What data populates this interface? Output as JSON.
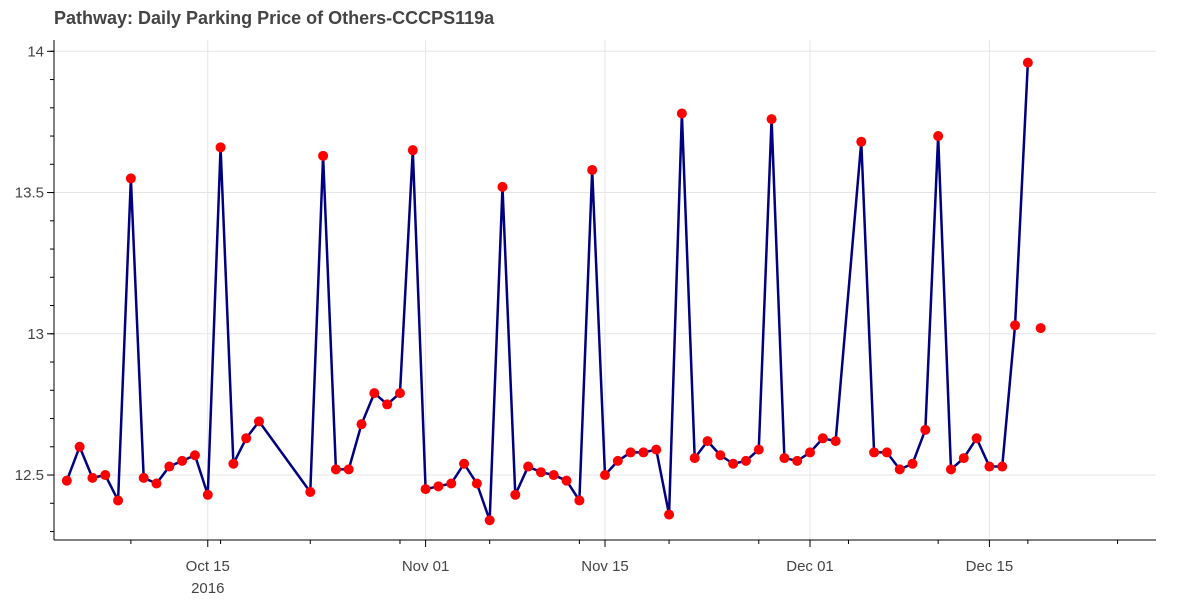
{
  "chart_data": {
    "type": "line",
    "title": "Pathway: Daily Parking Price of Others-CCCPS119a",
    "xlabel": "",
    "ylabel": "",
    "ylim": [
      12.27,
      14.04
    ],
    "xlim": [
      "2016-10-03",
      "2016-12-28"
    ],
    "grid": true,
    "line_color": "#000080",
    "marker_color": "#ff0000",
    "y_ticks": [
      {
        "value": 12.5,
        "label": "12.5"
      },
      {
        "value": 13,
        "label": "13"
      },
      {
        "value": 13.5,
        "label": "13.5"
      },
      {
        "value": 14,
        "label": "14"
      }
    ],
    "x_ticks": [
      {
        "date": "2016-10-15",
        "label": "Oct 15",
        "sublabel": "2016"
      },
      {
        "date": "2016-11-01",
        "label": "Nov 01",
        "sublabel": ""
      },
      {
        "date": "2016-11-15",
        "label": "Nov 15",
        "sublabel": ""
      },
      {
        "date": "2016-12-01",
        "label": "Dec 01",
        "sublabel": ""
      },
      {
        "date": "2016-12-15",
        "label": "Dec 15",
        "sublabel": ""
      }
    ],
    "series": [
      {
        "points": [
          [
            "2016-10-04",
            12.48
          ],
          [
            "2016-10-05",
            12.6
          ],
          [
            "2016-10-06",
            12.49
          ],
          [
            "2016-10-07",
            12.5
          ],
          [
            "2016-10-08",
            12.41
          ],
          [
            "2016-10-09",
            13.55
          ],
          [
            "2016-10-10",
            12.49
          ],
          [
            "2016-10-11",
            12.47
          ],
          [
            "2016-10-12",
            12.53
          ],
          [
            "2016-10-13",
            12.55
          ],
          [
            "2016-10-14",
            12.57
          ],
          [
            "2016-10-15",
            12.43
          ],
          [
            "2016-10-16",
            13.66
          ],
          [
            "2016-10-17",
            12.54
          ],
          [
            "2016-10-18",
            12.63
          ],
          [
            "2016-10-19",
            12.69
          ],
          [
            "2016-10-23",
            12.44
          ],
          [
            "2016-10-24",
            13.63
          ],
          [
            "2016-10-25",
            12.52
          ],
          [
            "2016-10-26",
            12.52
          ],
          [
            "2016-10-27",
            12.68
          ],
          [
            "2016-10-28",
            12.79
          ],
          [
            "2016-10-29",
            12.75
          ],
          [
            "2016-10-30",
            12.79
          ],
          [
            "2016-10-31",
            13.65
          ],
          [
            "2016-11-01",
            12.45
          ],
          [
            "2016-11-02",
            12.46
          ],
          [
            "2016-11-03",
            12.47
          ],
          [
            "2016-11-04",
            12.54
          ],
          [
            "2016-11-05",
            12.47
          ],
          [
            "2016-11-06",
            12.34
          ],
          [
            "2016-11-07",
            13.52
          ],
          [
            "2016-11-08",
            12.43
          ],
          [
            "2016-11-09",
            12.53
          ],
          [
            "2016-11-10",
            12.51
          ],
          [
            "2016-11-11",
            12.5
          ],
          [
            "2016-11-12",
            12.48
          ],
          [
            "2016-11-13",
            12.41
          ],
          [
            "2016-11-14",
            13.58
          ],
          [
            "2016-11-15",
            12.5
          ],
          [
            "2016-11-16",
            12.55
          ],
          [
            "2016-11-17",
            12.58
          ],
          [
            "2016-11-18",
            12.58
          ],
          [
            "2016-11-19",
            12.59
          ],
          [
            "2016-11-20",
            12.36
          ],
          [
            "2016-11-21",
            13.78
          ],
          [
            "2016-11-22",
            12.56
          ],
          [
            "2016-11-23",
            12.62
          ],
          [
            "2016-11-24",
            12.57
          ],
          [
            "2016-11-25",
            12.54
          ],
          [
            "2016-11-26",
            12.55
          ],
          [
            "2016-11-27",
            12.59
          ],
          [
            "2016-11-28",
            13.76
          ],
          [
            "2016-11-29",
            12.56
          ],
          [
            "2016-11-30",
            12.55
          ],
          [
            "2016-12-01",
            12.58
          ],
          [
            "2016-12-02",
            12.63
          ],
          [
            "2016-12-03",
            12.62
          ],
          [
            "2016-12-05",
            13.68
          ],
          [
            "2016-12-06",
            12.58
          ],
          [
            "2016-12-07",
            12.58
          ],
          [
            "2016-12-08",
            12.52
          ],
          [
            "2016-12-09",
            12.54
          ],
          [
            "2016-12-10",
            12.66
          ],
          [
            "2016-12-11",
            13.7
          ],
          [
            "2016-12-12",
            12.52
          ],
          [
            "2016-12-13",
            12.56
          ],
          [
            "2016-12-14",
            12.63
          ],
          [
            "2016-12-15",
            12.53
          ],
          [
            "2016-12-16",
            12.53
          ],
          [
            "2016-12-17",
            13.03
          ],
          [
            "2016-12-18",
            13.96
          ],
          [
            "2016-12-19",
            13.02
          ]
        ],
        "line_breaks_before": [
          "2016-12-19"
        ]
      }
    ]
  }
}
